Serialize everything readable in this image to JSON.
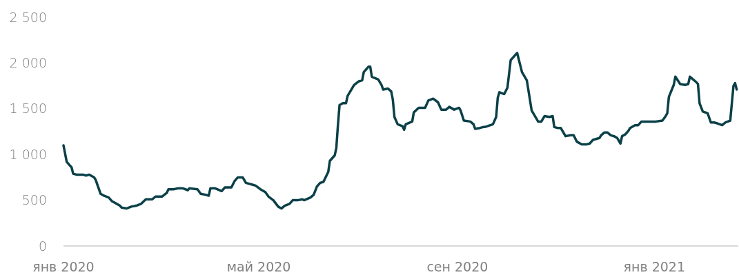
{
  "chart_data": {
    "type": "line",
    "x": [
      "2020-01-01",
      "2020-01-03",
      "2020-01-06",
      "2020-01-07",
      "2020-01-09",
      "2020-01-13",
      "2020-01-15",
      "2020-01-17",
      "2020-01-20",
      "2020-01-21",
      "2020-01-24",
      "2020-01-26",
      "2020-01-29",
      "2020-01-31",
      "2020-02-02",
      "2020-02-05",
      "2020-02-06",
      "2020-02-09",
      "2020-02-12",
      "2020-02-15",
      "2020-02-18",
      "2020-02-21",
      "2020-02-25",
      "2020-02-27",
      "2020-03-02",
      "2020-03-05",
      "2020-03-06",
      "2020-03-09",
      "2020-03-12",
      "2020-03-15",
      "2020-03-18",
      "2020-03-19",
      "2020-03-24",
      "2020-03-26",
      "2020-03-29",
      "2020-03-31",
      "2020-04-01",
      "2020-04-04",
      "2020-04-08",
      "2020-04-10",
      "2020-04-14",
      "2020-04-16",
      "2020-04-18",
      "2020-04-21",
      "2020-04-23",
      "2020-04-27",
      "2020-04-29",
      "2020-05-02",
      "2020-05-05",
      "2020-05-07",
      "2020-05-10",
      "2020-05-13",
      "2020-05-15",
      "2020-05-17",
      "2020-05-20",
      "2020-05-22",
      "2020-05-25",
      "2020-05-28",
      "2020-05-29",
      "2020-06-02",
      "2020-06-04",
      "2020-06-06",
      "2020-06-08",
      "2020-06-10",
      "2020-06-13",
      "2020-06-14",
      "2020-06-17",
      "2020-06-18",
      "2020-06-19",
      "2020-06-20",
      "2020-06-22",
      "2020-06-24",
      "2020-06-25",
      "2020-06-29",
      "2020-07-02",
      "2020-07-04",
      "2020-07-05",
      "2020-07-08",
      "2020-07-09",
      "2020-07-10",
      "2020-07-14",
      "2020-07-16",
      "2020-07-17",
      "2020-07-20",
      "2020-07-22",
      "2020-07-23",
      "2020-07-24",
      "2020-07-26",
      "2020-07-29",
      "2020-07-30",
      "2020-07-31",
      "2020-08-04",
      "2020-08-05",
      "2020-08-08",
      "2020-08-12",
      "2020-08-14",
      "2020-08-17",
      "2020-08-20",
      "2020-08-22",
      "2020-08-25",
      "2020-08-27",
      "2020-08-30",
      "2020-09-02",
      "2020-09-03",
      "2020-09-05",
      "2020-09-09",
      "2020-09-11",
      "2020-09-12",
      "2020-09-15",
      "2020-09-17",
      "2020-09-18",
      "2020-09-23",
      "2020-09-25",
      "2020-09-26",
      "2020-09-27",
      "2020-09-30",
      "2020-10-02",
      "2020-10-04",
      "2020-10-07",
      "2020-10-08",
      "2020-10-11",
      "2020-10-14",
      "2020-10-17",
      "2020-10-19",
      "2020-10-21",
      "2020-10-23",
      "2020-10-25",
      "2020-10-28",
      "2020-10-30",
      "2020-10-31",
      "2020-11-02",
      "2020-11-04",
      "2020-11-07",
      "2020-11-10",
      "2020-11-12",
      "2020-11-14",
      "2020-11-17",
      "2020-11-20",
      "2020-11-22",
      "2020-11-24",
      "2020-11-28",
      "2020-11-29",
      "2020-12-01",
      "2020-12-03",
      "2020-12-05",
      "2020-12-07",
      "2020-12-09",
      "2020-12-11",
      "2020-12-12",
      "2020-12-14",
      "2020-12-16",
      "2020-12-17",
      "2020-12-20",
      "2020-12-22",
      "2020-12-24",
      "2021-01-02",
      "2021-01-06",
      "2021-01-08",
      "2021-01-09",
      "2021-01-10",
      "2021-01-13",
      "2021-01-14",
      "2021-01-17",
      "2021-01-20",
      "2021-01-22",
      "2021-01-23",
      "2021-01-27",
      "2021-01-28",
      "2021-01-29",
      "2021-01-31",
      "2021-02-03",
      "2021-02-05",
      "2021-02-07",
      "2021-02-09",
      "2021-02-12",
      "2021-02-14",
      "2021-02-17",
      "2021-02-19",
      "2021-02-20",
      "2021-02-21"
    ],
    "series": [
      {
        "color": "#0b4048",
        "values": [
          1100,
          920,
          860,
          790,
          780,
          780,
          770,
          780,
          750,
          720,
          570,
          550,
          530,
          490,
          470,
          440,
          420,
          410,
          430,
          440,
          460,
          510,
          510,
          540,
          540,
          580,
          620,
          620,
          630,
          630,
          610,
          630,
          620,
          570,
          560,
          550,
          630,
          630,
          600,
          640,
          640,
          710,
          750,
          750,
          690,
          670,
          660,
          620,
          590,
          540,
          500,
          430,
          410,
          440,
          460,
          500,
          500,
          510,
          500,
          530,
          560,
          650,
          690,
          700,
          810,
          930,
          990,
          1070,
          1320,
          1540,
          1560,
          1560,
          1640,
          1760,
          1800,
          1810,
          1900,
          1960,
          1960,
          1850,
          1820,
          1760,
          1710,
          1720,
          1690,
          1600,
          1410,
          1330,
          1310,
          1270,
          1330,
          1360,
          1460,
          1510,
          1510,
          1590,
          1610,
          1570,
          1490,
          1490,
          1520,
          1490,
          1510,
          1480,
          1370,
          1360,
          1330,
          1280,
          1290,
          1300,
          1300,
          1330,
          1410,
          1620,
          1680,
          1660,
          1730,
          2030,
          2090,
          2110,
          1900,
          1810,
          1480,
          1420,
          1360,
          1360,
          1420,
          1410,
          1420,
          1300,
          1290,
          1290,
          1200,
          1210,
          1210,
          1140,
          1110,
          1110,
          1120,
          1160,
          1180,
          1210,
          1240,
          1240,
          1210,
          1200,
          1180,
          1120,
          1200,
          1220,
          1260,
          1290,
          1320,
          1320,
          1360,
          1360,
          1370,
          1420,
          1450,
          1630,
          1760,
          1850,
          1770,
          1760,
          1770,
          1850,
          1790,
          1770,
          1560,
          1470,
          1450,
          1350,
          1350,
          1340,
          1320,
          1350,
          1370,
          1750,
          1780,
          1710
        ]
      }
    ],
    "xlim": [
      "2020-01-01",
      "2021-02-22"
    ],
    "xticks": [
      {
        "value": "2020-01-01",
        "label": "янв 2020"
      },
      {
        "value": "2020-05-01",
        "label": "май 2020"
      },
      {
        "value": "2020-09-01",
        "label": "сен 2020"
      },
      {
        "value": "2021-01-01",
        "label": "янв 2021"
      }
    ],
    "ylim": [
      0,
      2500
    ],
    "yticks": [
      0,
      {
        "value": 500,
        "label": "500"
      },
      {
        "value": 1000,
        "label": "1 000"
      },
      {
        "value": 1500,
        "label": "1 500"
      },
      {
        "value": 2000,
        "label": "2 000"
      },
      {
        "value": 2500,
        "label": "2 500"
      }
    ],
    "line_style": "solid",
    "marker": "none",
    "grid": false
  }
}
